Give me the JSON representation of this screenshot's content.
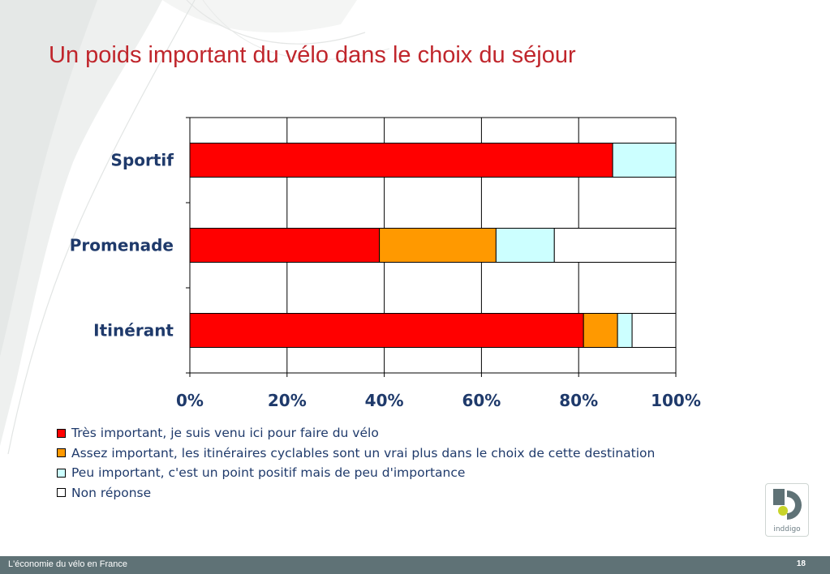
{
  "slide": {
    "title": "Un poids important du vélo dans le choix du séjour",
    "footer_text": "L'économie du vélo en France",
    "page_number": "18",
    "logo_text": "inddigo"
  },
  "colors": {
    "title": "#c0262c",
    "labels": "#1f3a6b",
    "footer_bg": "#5f7276"
  },
  "chart_data": {
    "type": "bar",
    "orientation": "horizontal",
    "stacked": true,
    "categories": [
      "Sportif",
      "Promenade",
      "Itinérant"
    ],
    "series": [
      {
        "name": "Très important, je suis venu ici pour faire du vélo",
        "color": "#ff0000",
        "values": [
          87,
          39,
          81
        ]
      },
      {
        "name": "Assez important, les itinéraires cyclables sont un vrai plus dans le choix de cette destination",
        "color": "#ff9900",
        "values": [
          0,
          24,
          7
        ]
      },
      {
        "name": "Peu important, c'est un point positif mais de peu d'importance",
        "color": "#ccffff",
        "values": [
          13,
          12,
          3
        ]
      },
      {
        "name": "Non réponse",
        "color": "#ffffff",
        "values": [
          0,
          25,
          9
        ]
      }
    ],
    "xlim": [
      0,
      100
    ],
    "x_ticks": [
      "0%",
      "20%",
      "40%",
      "60%",
      "80%",
      "100%"
    ],
    "grid": true,
    "legend_position": "bottom"
  }
}
